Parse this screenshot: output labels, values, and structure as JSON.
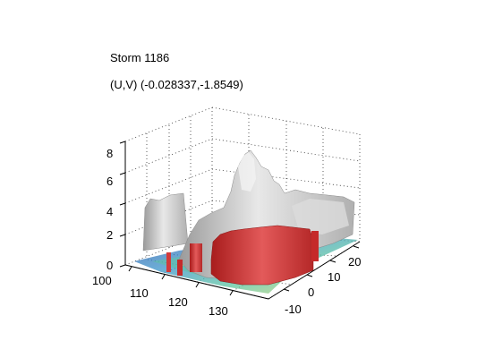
{
  "chart_data": {
    "type": "surface3d",
    "title": "Storm 1186",
    "subtitle": "(U,V) (-0.028337,-1.8549)",
    "xlabel": "",
    "ylabel": "",
    "zlabel": "",
    "x_ticks": [
      "100",
      "110",
      "120",
      "130"
    ],
    "y_ticks": [
      "-10",
      "0",
      "10",
      "20"
    ],
    "z_ticks": [
      "0",
      "2",
      "4",
      "6",
      "8"
    ],
    "xlim": [
      100,
      138
    ],
    "ylim": [
      -14,
      25
    ],
    "zlim": [
      0,
      8
    ],
    "grid": true,
    "colors": {
      "gray_isosurface": "#c4c4c4",
      "red_isosurface": "#d23a3a",
      "base_contours": [
        "#2f4fa8",
        "#3a93c9",
        "#5cc4a0",
        "#d9d76a"
      ]
    }
  }
}
